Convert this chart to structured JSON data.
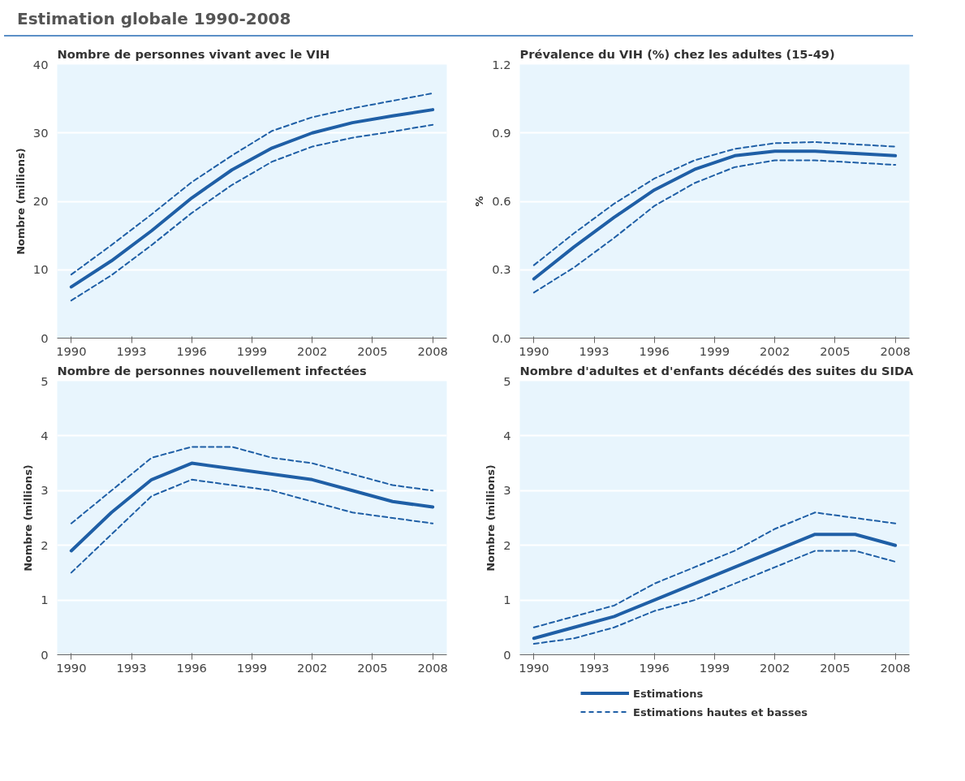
{
  "chart_data": [
    {
      "type": "other",
      "title": "Estimation globale 1990-2008"
    },
    {
      "type": "line",
      "title": "Nombre de personnes vivant avec le VIH",
      "ylabel": "Nombre (millions)",
      "x": [
        1990,
        1992,
        1994,
        1996,
        1998,
        2000,
        2002,
        2004,
        2006,
        2008
      ],
      "xlim": [
        1989.3,
        2008.7
      ],
      "xticks": [
        1990,
        1993,
        1996,
        1999,
        2002,
        2005,
        2008
      ],
      "ylim": [
        0,
        40
      ],
      "yticks": [
        0,
        10,
        20,
        30,
        40
      ],
      "grid": "y",
      "legend": false,
      "series": [
        {
          "color": "#1f5fa6",
          "line_style": "solid",
          "values": [
            7.5,
            11.3,
            15.7,
            20.5,
            24.6,
            27.8,
            30.0,
            31.5,
            32.5,
            33.4
          ]
        },
        {
          "color": "#1f5fa6",
          "line_style": "dashed",
          "values": [
            9.3,
            13.6,
            18.1,
            22.8,
            26.7,
            30.3,
            32.3,
            33.6,
            34.7,
            35.8
          ]
        },
        {
          "color": "#1f5fa6",
          "line_style": "dashed",
          "values": [
            5.5,
            9.2,
            13.6,
            18.3,
            22.4,
            25.8,
            28.0,
            29.3,
            30.2,
            31.2
          ]
        }
      ]
    },
    {
      "type": "line",
      "title": "Prévalence du VIH (%) chez les adultes (15-49)",
      "ylabel": "%",
      "x": [
        1990,
        1992,
        1994,
        1996,
        1998,
        2000,
        2002,
        2004,
        2006,
        2008
      ],
      "xlim": [
        1989.3,
        2008.7
      ],
      "xticks": [
        1990,
        1993,
        1996,
        1999,
        2002,
        2005,
        2008
      ],
      "ylim": [
        0,
        1.2
      ],
      "yticks": [
        {
          "value": 0,
          "label": "0.0"
        },
        0.3,
        0.6,
        0.9,
        1.2
      ],
      "grid": "y",
      "legend": false,
      "series": [
        {
          "color": "#1f5fa6",
          "line_style": "solid",
          "values": [
            0.26,
            0.4,
            0.53,
            0.65,
            0.74,
            0.8,
            0.82,
            0.82,
            0.81,
            0.8
          ]
        },
        {
          "color": "#1f5fa6",
          "line_style": "dashed",
          "values": [
            0.32,
            0.46,
            0.59,
            0.7,
            0.78,
            0.83,
            0.855,
            0.86,
            0.85,
            0.84
          ]
        },
        {
          "color": "#1f5fa6",
          "line_style": "dashed",
          "values": [
            0.2,
            0.31,
            0.44,
            0.58,
            0.68,
            0.75,
            0.78,
            0.78,
            0.77,
            0.76
          ]
        }
      ]
    },
    {
      "type": "line",
      "title": "Nombre de personnes nouvellement infectées",
      "ylabel": "Nombre (millions)",
      "x": [
        1990,
        1992,
        1994,
        1996,
        1998,
        2000,
        2002,
        2004,
        2006,
        2008
      ],
      "xlim": [
        1989.3,
        2008.7
      ],
      "xticks": [
        1990,
        1993,
        1996,
        1999,
        2002,
        2005,
        2008
      ],
      "ylim": [
        0,
        5
      ],
      "yticks": [
        0,
        1,
        2,
        3,
        4,
        5
      ],
      "grid": "y",
      "legend": false,
      "series": [
        {
          "color": "#1f5fa6",
          "line_style": "solid",
          "values": [
            1.9,
            2.6,
            3.2,
            3.5,
            3.4,
            3.3,
            3.2,
            3.0,
            2.8,
            2.7
          ]
        },
        {
          "color": "#1f5fa6",
          "line_style": "dashed",
          "values": [
            2.4,
            3.0,
            3.6,
            3.8,
            3.8,
            3.6,
            3.5,
            3.3,
            3.1,
            3.0
          ]
        },
        {
          "color": "#1f5fa6",
          "line_style": "dashed",
          "values": [
            1.5,
            2.2,
            2.9,
            3.2,
            3.1,
            3.0,
            2.8,
            2.6,
            2.5,
            2.4
          ]
        }
      ]
    },
    {
      "type": "line",
      "title": "Nombre d'adultes et d'enfants décédés des suites du SIDA",
      "ylabel": "Nombre (millions)",
      "x": [
        1990,
        1992,
        1994,
        1996,
        1998,
        2000,
        2002,
        2004,
        2006,
        2008
      ],
      "xlim": [
        1989.3,
        2008.7
      ],
      "xticks": [
        1990,
        1993,
        1996,
        1999,
        2002,
        2005,
        2008
      ],
      "ylim": [
        0,
        5
      ],
      "yticks": [
        0,
        1,
        2,
        3,
        4,
        5
      ],
      "grid": "y",
      "legend": "bottom",
      "series": [
        {
          "name": "Estimations",
          "color": "#1f5fa6",
          "line_style": "solid",
          "values": [
            0.3,
            0.5,
            0.7,
            1.0,
            1.3,
            1.6,
            1.9,
            2.2,
            2.2,
            2.0
          ]
        },
        {
          "name": "Estimations hautes et basses",
          "color": "#1f5fa6",
          "line_style": "dashed",
          "values": [
            0.5,
            0.7,
            0.9,
            1.3,
            1.6,
            1.9,
            2.3,
            2.6,
            2.5,
            2.4
          ]
        },
        {
          "color": "#1f5fa6",
          "line_style": "dashed",
          "values": [
            0.2,
            0.3,
            0.5,
            0.8,
            1.0,
            1.3,
            1.6,
            1.9,
            1.9,
            1.7
          ]
        }
      ]
    }
  ]
}
